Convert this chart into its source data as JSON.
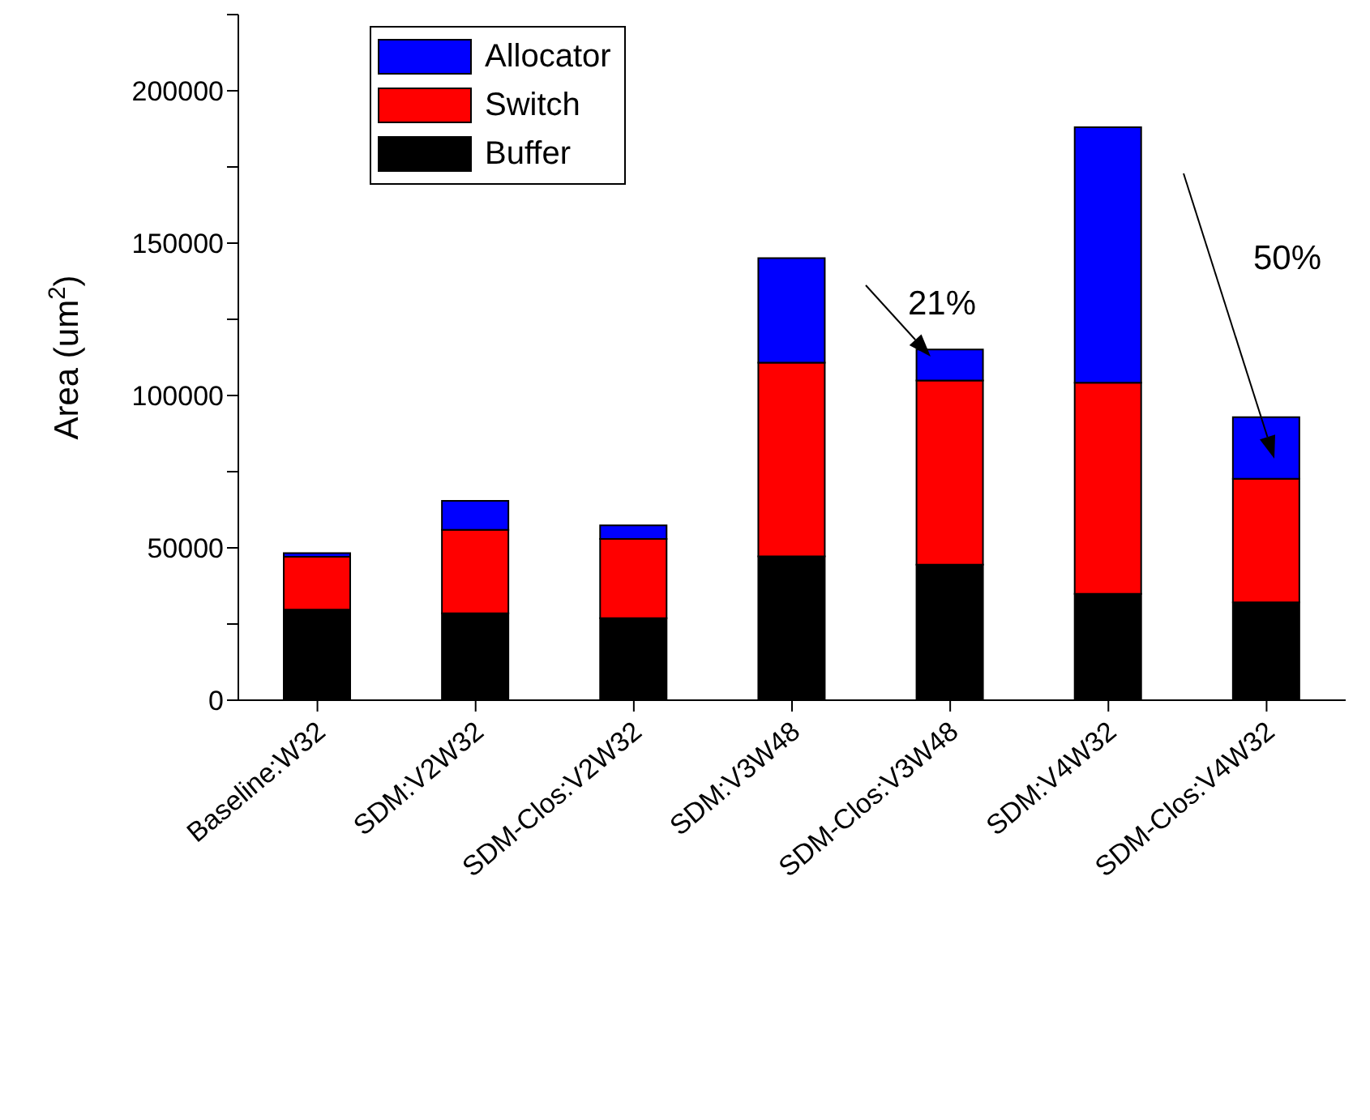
{
  "chart_data": {
    "type": "bar",
    "stacked": true,
    "ylabel": "Area (um$^{2}$)",
    "categories": [
      "Baseline:W32",
      "SDM:V2W32",
      "SDM-Clos:V2W32",
      "SDM:V3W48",
      "SDM-Clos:V3W48",
      "SDM:V4W32",
      "SDM-Clos:V4W32"
    ],
    "series": [
      {
        "name": "Buffer",
        "color": "#000000",
        "values": [
          29700,
          28500,
          26900,
          47200,
          44500,
          34900,
          32100
        ]
      },
      {
        "name": "Switch",
        "color": "#ff0000",
        "values": [
          17400,
          27400,
          26000,
          63600,
          60400,
          69300,
          40600
        ]
      },
      {
        "name": "Allocator",
        "color": "#0000ff",
        "values": [
          1200,
          9500,
          4500,
          34300,
          10200,
          83800,
          20200
        ]
      }
    ],
    "ylim": [
      0,
      225000
    ],
    "yticks": [
      0,
      {
        "value": 25000,
        "label": null
      },
      50000,
      {
        "value": 75000,
        "label": null
      },
      100000,
      {
        "value": 125000,
        "label": null
      },
      150000,
      {
        "value": 175000,
        "label": null
      },
      200000,
      {
        "value": 225000,
        "label": null
      }
    ],
    "annotations": [
      "21%",
      "50%"
    ],
    "grid": false,
    "legend": "top left"
  }
}
